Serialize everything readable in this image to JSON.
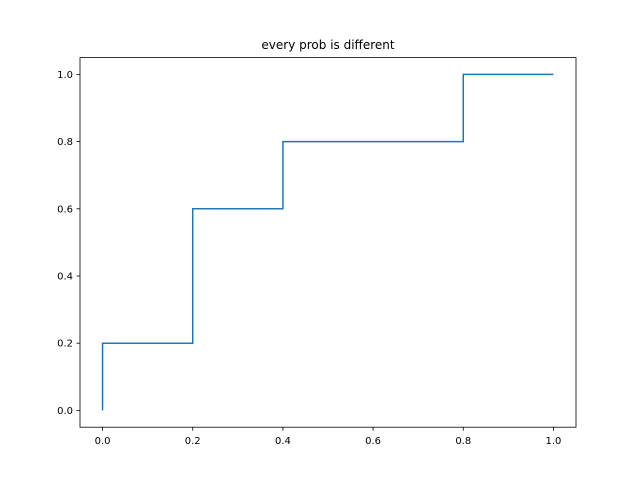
{
  "chart_data": {
    "type": "line",
    "title": "every prob is different",
    "xlabel": "",
    "ylabel": "",
    "xlim": [
      -0.05,
      1.05
    ],
    "ylim": [
      -0.05,
      1.05
    ],
    "xticks": [
      0.0,
      0.2,
      0.4,
      0.6,
      0.8,
      1.0
    ],
    "xtick_labels": [
      "0.0",
      "0.2",
      "0.4",
      "0.6",
      "0.8",
      "1.0"
    ],
    "yticks": [
      0.0,
      0.2,
      0.4,
      0.6,
      0.8,
      1.0
    ],
    "ytick_labels": [
      "0.0",
      "0.2",
      "0.4",
      "0.6",
      "0.8",
      "1.0"
    ],
    "grid": false,
    "series": [
      {
        "step": "post",
        "color": "#1f77b4",
        "x": [
          0.0,
          0.0,
          0.2,
          0.4,
          0.8,
          1.0
        ],
        "y": [
          0.0,
          0.2,
          0.6,
          0.8,
          1.0,
          1.0
        ]
      }
    ]
  }
}
